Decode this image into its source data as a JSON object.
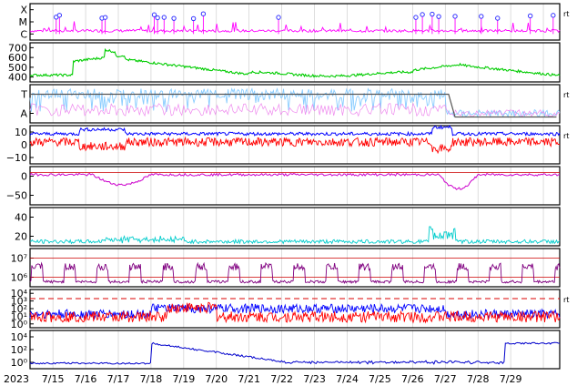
{
  "year_label": "2023",
  "x_ticks": [
    "7/15",
    "7/16",
    "7/17",
    "7/18",
    "7/19",
    "7/20",
    "7/21",
    "7/22",
    "7/23",
    "7/24",
    "7/25",
    "7/26",
    "7/27",
    "7/28",
    "7/29"
  ],
  "right_marker": "rt",
  "colors": {
    "xray_flares": "#ff00ff",
    "solar_wind_speed": "#00cc00",
    "imf_bt": "#0000ff",
    "imf_bz": "#ff0000",
    "dst": "#cc00cc",
    "ae": "#00cccc",
    "electron_flux": "#800080",
    "proton": "#0000ff",
    "neutron": "#0000cc",
    "grid": "#c8c8c8",
    "reference_line": "#cc0000"
  },
  "chart_data": [
    {
      "type": "line",
      "panel": "xray_flares",
      "y_tick_labels": [
        "X",
        "M",
        "C"
      ],
      "marker": "rt",
      "flare_days": [
        0.1,
        0.2,
        1.5,
        1.6,
        3.1,
        3.2,
        3.4,
        3.7,
        4.3,
        4.6,
        6.9,
        11.1,
        11.3,
        11.6,
        11.8,
        12.3,
        13.1,
        13.6,
        14.6,
        15.3
      ]
    },
    {
      "type": "line",
      "panel": "solar_wind_speed",
      "y_tick_labels": [
        "700",
        "600",
        "500",
        "400"
      ],
      "ylim": [
        350,
        750
      ]
    },
    {
      "type": "line",
      "panel": "magnetic_sector",
      "y_tick_labels": [
        "T",
        "A"
      ],
      "marker": "rt"
    },
    {
      "type": "line",
      "panel": "imf",
      "y_tick_labels": [
        "10",
        "0",
        "−10"
      ],
      "ylim": [
        -20,
        15
      ],
      "marker": "rt"
    },
    {
      "type": "line",
      "panel": "dst",
      "y_tick_labels": [
        "0",
        "−50"
      ],
      "ylim": [
        -80,
        15
      ]
    },
    {
      "type": "line",
      "panel": "ae",
      "y_tick_labels": [
        "40",
        "20"
      ],
      "ylim": [
        0,
        50
      ]
    },
    {
      "type": "line",
      "panel": "electron_flux",
      "y_tick_labels": [
        "10⁷",
        "10⁶"
      ],
      "scale": "log"
    },
    {
      "type": "line",
      "panel": "proton_flux",
      "y_tick_labels": [
        "10⁴",
        "10³",
        "10²",
        "10¹",
        "10⁰"
      ],
      "scale": "log",
      "marker": "rt"
    },
    {
      "type": "line",
      "panel": "neutron",
      "y_tick_labels": [
        "10⁴",
        "10²",
        "10⁰"
      ],
      "scale": "log"
    }
  ]
}
